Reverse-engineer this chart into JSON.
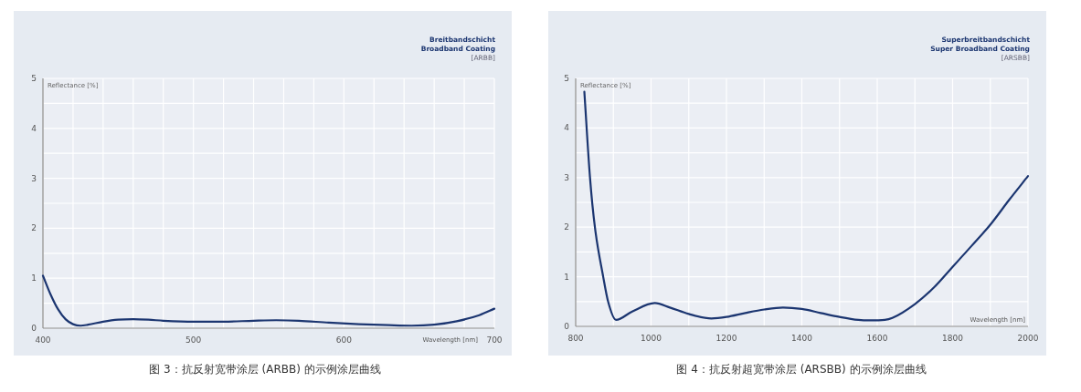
{
  "chart_data": [
    {
      "type": "line",
      "title": "Breitbandschicht\nBroadband Coating\n[ARBB]",
      "xlabel": "Wavelength [nm]",
      "ylabel": "Reflectance [%]",
      "annotations": [
        "图 3：抗反射宽带涂层 (ARBB) 的示例涂层曲线"
      ],
      "x": [
        400,
        405,
        410,
        415,
        420,
        425,
        430,
        440,
        450,
        460,
        470,
        480,
        500,
        520,
        540,
        555,
        570,
        590,
        610,
        630,
        645,
        660,
        675,
        690,
        700
      ],
      "series": [
        {
          "color": "#1b3570",
          "values": [
            1.05,
            0.68,
            0.38,
            0.18,
            0.08,
            0.05,
            0.07,
            0.13,
            0.17,
            0.18,
            0.17,
            0.15,
            0.13,
            0.13,
            0.15,
            0.16,
            0.15,
            0.11,
            0.08,
            0.06,
            0.05,
            0.07,
            0.14,
            0.26,
            0.39
          ]
        }
      ],
      "xlim": [
        400,
        700
      ],
      "ylim": [
        0,
        5
      ],
      "xticks": [
        400,
        {
          "value": 420,
          "label": null
        },
        {
          "value": 440,
          "label": null
        },
        {
          "value": 460,
          "label": null
        },
        {
          "value": 480,
          "label": null
        },
        500,
        {
          "value": 520,
          "label": null
        },
        {
          "value": 540,
          "label": null
        },
        {
          "value": 560,
          "label": null
        },
        {
          "value": 580,
          "label": null
        },
        600,
        {
          "value": 620,
          "label": null
        },
        {
          "value": 640,
          "label": null
        },
        {
          "value": 660,
          "label": null
        },
        {
          "value": 680,
          "label": null
        },
        700
      ],
      "yticks": [
        0,
        {
          "value": 0.5,
          "label": null
        },
        1,
        {
          "value": 1.5,
          "label": null
        },
        2,
        {
          "value": 2.5,
          "label": null
        },
        3,
        {
          "value": 3.5,
          "label": null
        },
        4,
        {
          "value": 4.5,
          "label": null
        },
        5
      ],
      "grid": true
    },
    {
      "type": "line",
      "title": "Superbreitbandschicht\nSuper Broadband Coating\n[ARSBB]",
      "xlabel": "Wavelength [nm]",
      "ylabel": "Reflectance [%]",
      "annotations": [
        "图 4：抗反射超宽带涂层 (ARSBB) 的示例涂层曲线"
      ],
      "x": [
        823,
        838,
        851,
        873,
        886,
        907,
        950,
        1010,
        1050,
        1100,
        1160,
        1200,
        1250,
        1300,
        1350,
        1400,
        1450,
        1500,
        1550,
        1580,
        1620,
        1640,
        1700,
        1750,
        1800,
        1850,
        1900,
        1950,
        2000
      ],
      "series": [
        {
          "color": "#1b3570",
          "values": [
            4.73,
            3,
            2,
            1,
            0.5,
            0.13,
            0.3,
            0.47,
            0.38,
            0.25,
            0.16,
            0.19,
            0.27,
            0.34,
            0.38,
            0.35,
            0.27,
            0.19,
            0.13,
            0.12,
            0.13,
            0.17,
            0.45,
            0.78,
            1.2,
            1.62,
            2.05,
            2.55,
            3.03
          ]
        }
      ],
      "xlim": [
        800,
        2000
      ],
      "ylim": [
        0,
        5
      ],
      "xticks": [
        800,
        {
          "value": 900,
          "label": null
        },
        1000,
        {
          "value": 1100,
          "label": null
        },
        1200,
        {
          "value": 1300,
          "label": null
        },
        1400,
        {
          "value": 1500,
          "label": null
        },
        1600,
        {
          "value": 1700,
          "label": null
        },
        1800,
        {
          "value": 1900,
          "label": null
        },
        2000
      ],
      "yticks": [
        0,
        {
          "value": 0.5,
          "label": null
        },
        1,
        {
          "value": 1.5,
          "label": null
        },
        2,
        {
          "value": 2.5,
          "label": null
        },
        3,
        {
          "value": 3.5,
          "label": null
        },
        4,
        {
          "value": 4.5,
          "label": null
        },
        5
      ],
      "grid": true
    }
  ]
}
